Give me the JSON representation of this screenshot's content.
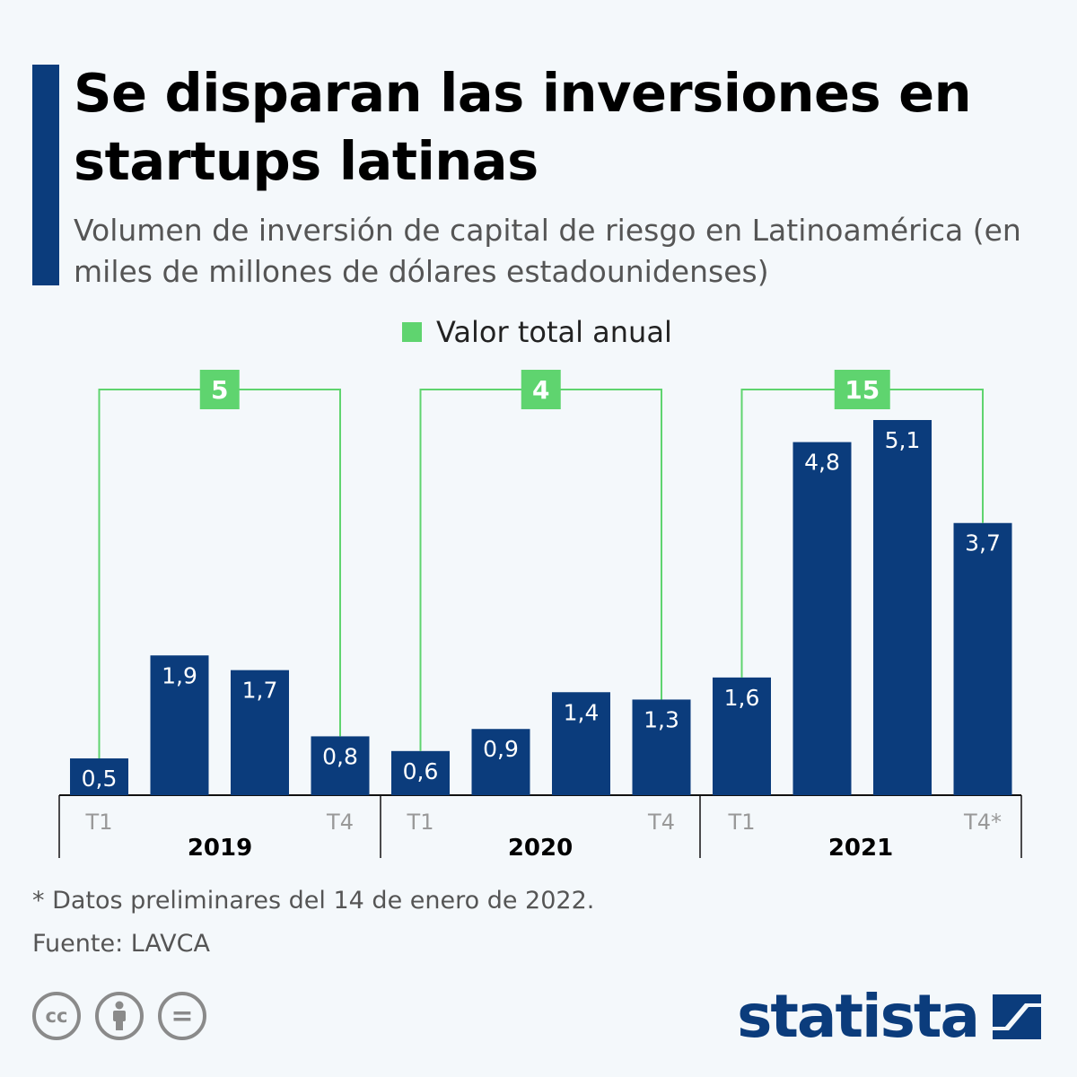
{
  "header": {
    "title": "Se disparan las inversiones en startups latinas",
    "subtitle": "Volumen de inversión de capital de riesgo en Latinoamérica (en miles de millones de dólares estadounidenses)"
  },
  "legend": {
    "label": "Valor total anual"
  },
  "colors": {
    "bar": "#0b3c7c",
    "total": "#5fd46f",
    "accent": "#0b3c7c"
  },
  "chart_data": {
    "type": "bar",
    "title": "Se disparan las inversiones en startups latinas",
    "ylabel": "miles de millones de dólares estadounidenses",
    "ylim": [
      0,
      5.1
    ],
    "groups": [
      {
        "year": "2019",
        "total": "5",
        "first_label": "T1",
        "last_label": "T4",
        "quarters": [
          {
            "v": 0.5,
            "label": "0,5"
          },
          {
            "v": 1.9,
            "label": "1,9"
          },
          {
            "v": 1.7,
            "label": "1,7"
          },
          {
            "v": 0.8,
            "label": "0,8"
          }
        ]
      },
      {
        "year": "2020",
        "total": "4",
        "first_label": "T1",
        "last_label": "T4",
        "quarters": [
          {
            "v": 0.6,
            "label": "0,6"
          },
          {
            "v": 0.9,
            "label": "0,9"
          },
          {
            "v": 1.4,
            "label": "1,4"
          },
          {
            "v": 1.3,
            "label": "1,3"
          }
        ]
      },
      {
        "year": "2021",
        "total": "15",
        "first_label": "T1",
        "last_label": "T4*",
        "quarters": [
          {
            "v": 1.6,
            "label": "1,6"
          },
          {
            "v": 4.8,
            "label": "4,8"
          },
          {
            "v": 5.1,
            "label": "5,1"
          },
          {
            "v": 3.7,
            "label": "3,7"
          }
        ]
      }
    ]
  },
  "footer": {
    "note": "* Datos preliminares del 14 de enero de 2022.",
    "source": "Fuente: LAVCA",
    "brand": "statista",
    "license_icons": [
      "cc-icon",
      "by-icon",
      "nd-icon"
    ],
    "license_cc": "cc",
    "license_nd": "="
  }
}
